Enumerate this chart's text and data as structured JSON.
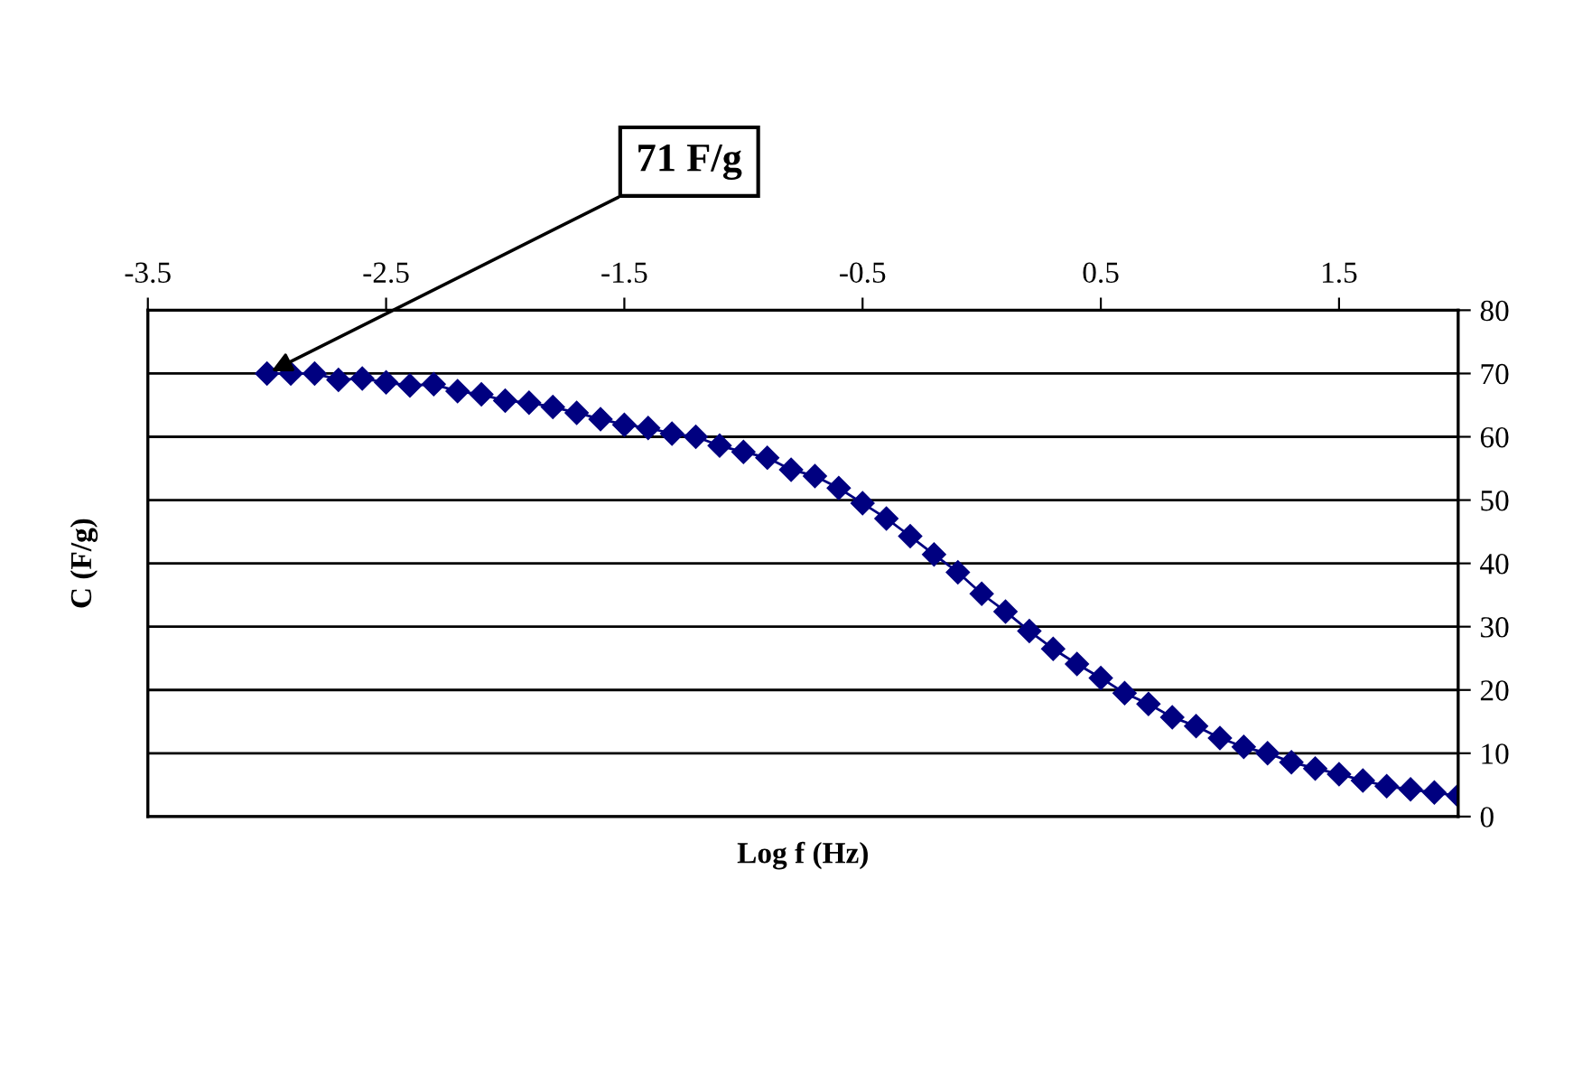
{
  "chart_data": {
    "type": "line",
    "xlabel": "Log f (Hz)",
    "ylabel": "C (F/g)",
    "x": [
      -3.0,
      -2.9,
      -2.8,
      -2.7,
      -2.6,
      -2.5,
      -2.4,
      -2.3,
      -2.2,
      -2.1,
      -2.0,
      -1.9,
      -1.8,
      -1.7,
      -1.6,
      -1.5,
      -1.4,
      -1.3,
      -1.2,
      -1.1,
      -1.0,
      -0.9,
      -0.8,
      -0.7,
      -0.6,
      -0.5,
      -0.4,
      -0.3,
      -0.2,
      -0.1,
      0.0,
      0.1,
      0.2,
      0.3,
      0.4,
      0.5,
      0.6,
      0.7,
      0.8,
      0.9,
      1.0,
      1.1,
      1.2,
      1.3,
      1.4,
      1.5,
      1.6,
      1.7,
      1.8,
      1.9,
      2.0
    ],
    "series": [
      {
        "color": "#000080",
        "values": [
          70,
          70,
          70,
          69,
          69.2,
          68.6,
          68.1,
          68.3,
          67.2,
          66.7,
          65.7,
          65.4,
          64.7,
          63.8,
          62.8,
          61.9,
          61.4,
          60.5,
          60,
          58.6,
          57.6,
          56.7,
          54.8,
          53.8,
          51.9,
          49.5,
          47.1,
          44.3,
          41.4,
          38.6,
          35.2,
          32.4,
          29.3,
          26.5,
          24.1,
          21.9,
          19.5,
          17.8,
          15.7,
          14.3,
          12.4,
          11.0,
          10.0,
          8.6,
          7.6,
          6.7,
          5.7,
          4.8,
          4.3,
          3.8,
          3.3
        ]
      }
    ],
    "xlim": [
      -3.5,
      2
    ],
    "xticks": [
      -3.5,
      -2.5,
      -1.5,
      -0.5,
      0.5,
      1.5
    ],
    "ylim": [
      0,
      80
    ],
    "yticks": [
      0,
      10,
      20,
      30,
      40,
      50,
      60,
      70,
      80
    ],
    "grid": "y",
    "legend": false,
    "marker": "diamond",
    "line_style": "solid",
    "annotations": [
      {
        "text": "71 F/g",
        "x": -3.0,
        "y": 70
      }
    ]
  }
}
